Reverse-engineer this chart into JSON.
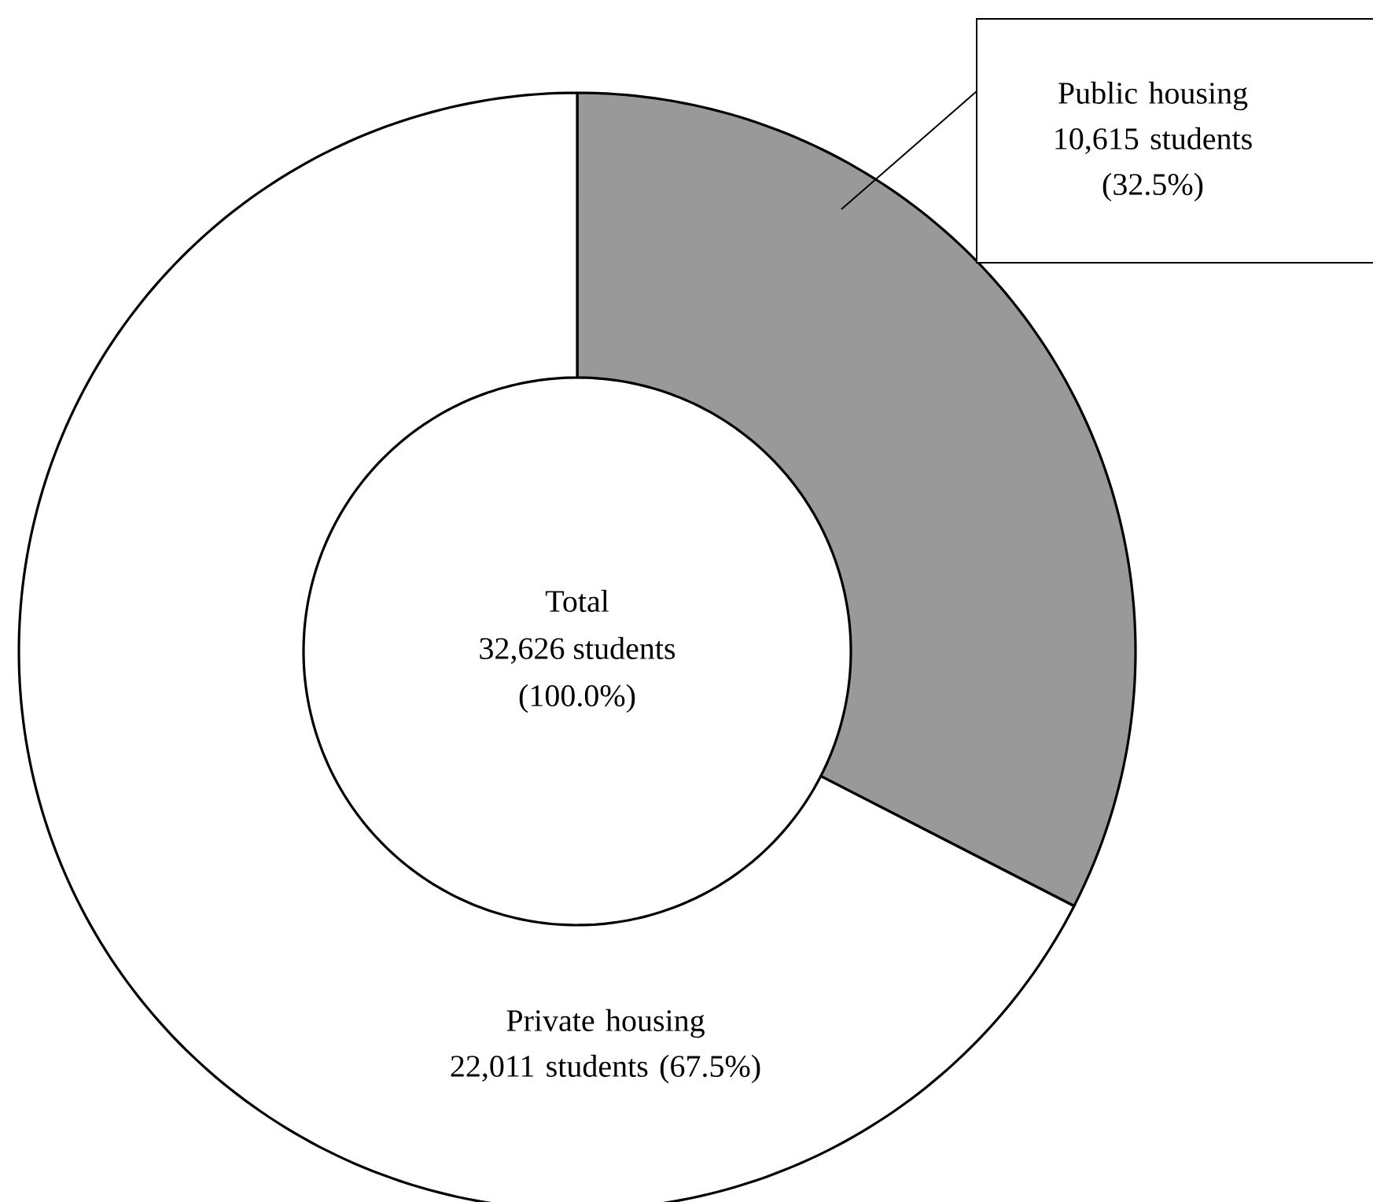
{
  "chart_data": {
    "type": "donut",
    "categories": [
      "Public housing",
      "Private housing"
    ],
    "values": [
      10615,
      22011
    ],
    "colors": [
      "#999999",
      "#ffffff"
    ],
    "value_labels": [
      "10,615 students (32.5%)",
      "22,011 students (67.5%)"
    ],
    "annotations": [
      "Total",
      "32,626 students",
      "(100.0%)"
    ]
  }
}
